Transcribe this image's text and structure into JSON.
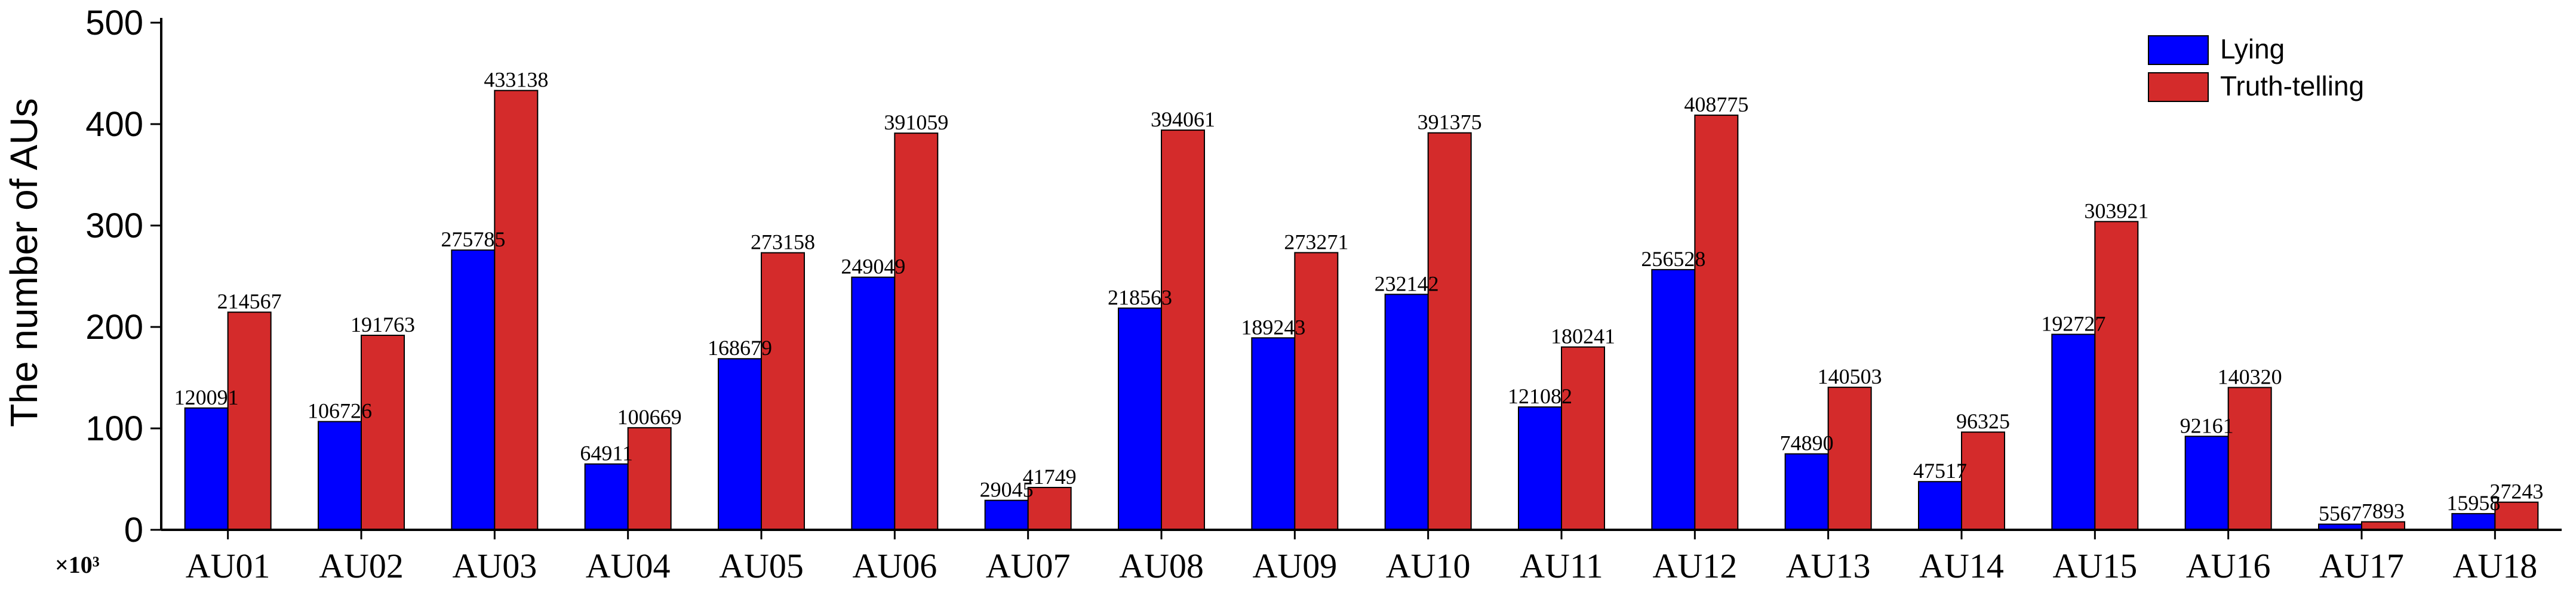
{
  "chart_data": {
    "type": "bar",
    "ylabel": "The number of AUs",
    "xlabel": "",
    "y_multiplier_label": "×10³",
    "ylim": [
      0,
      500
    ],
    "yticks": [
      0,
      100,
      200,
      300,
      400,
      500
    ],
    "legend_position": "top-right",
    "grid": false,
    "categories": [
      "AU01",
      "AU02",
      "AU03",
      "AU04",
      "AU05",
      "AU06",
      "AU07",
      "AU08",
      "AU09",
      "AU10",
      "AU11",
      "AU12",
      "AU13",
      "AU14",
      "AU15",
      "AU16",
      "AU17",
      "AU18"
    ],
    "series": [
      {
        "name": "Lying",
        "color": "#0000ff",
        "values": [
          120091,
          106726,
          275785,
          64911,
          168679,
          249049,
          29045,
          218563,
          189243,
          232142,
          121082,
          256528,
          74890,
          47517,
          192727,
          92161,
          5567,
          15958
        ],
        "labels": [
          "120091",
          "106726",
          "275785",
          "64911",
          "168679",
          "249049",
          "29045",
          "218563",
          "189243",
          "232142",
          "121082",
          "256528",
          "74890",
          "47517",
          "192727",
          "92161",
          "5567",
          "15958"
        ]
      },
      {
        "name": "Truth-telling",
        "color": "#d42b2b",
        "values": [
          214567,
          191763,
          433138,
          100669,
          273158,
          391059,
          41749,
          394061,
          273271,
          391375,
          180241,
          408775,
          140503,
          96325,
          303921,
          140320,
          7893,
          27243
        ],
        "labels": [
          "214567",
          "191763",
          "433138",
          "100669",
          "273158",
          "391059",
          "41749",
          "394061",
          "273271",
          "391375",
          "180241",
          "408775",
          "140503",
          "96325",
          "303921",
          "140320",
          "7893",
          "27243"
        ]
      }
    ]
  }
}
